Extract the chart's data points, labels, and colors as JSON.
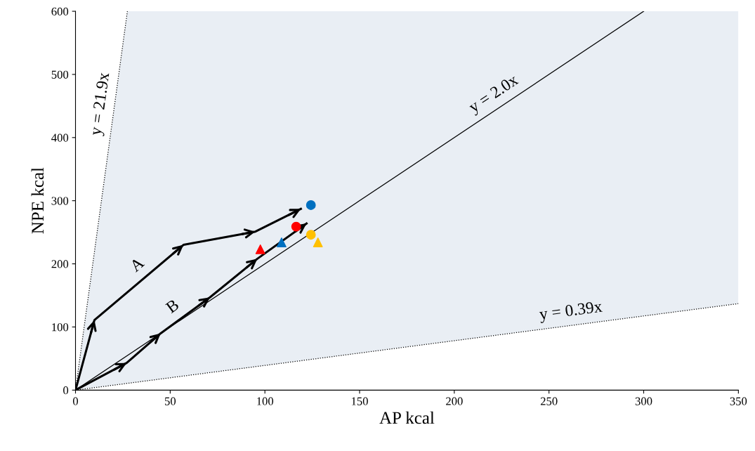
{
  "chart_data": {
    "type": "line",
    "xlabel": "AP kcal",
    "ylabel": "NPE kcal",
    "xlim": [
      0,
      350
    ],
    "ylim": [
      0,
      600
    ],
    "xticks": [
      0,
      50,
      100,
      150,
      200,
      250,
      300,
      350
    ],
    "yticks": [
      0,
      100,
      200,
      300,
      400,
      500,
      600
    ],
    "grid": false,
    "series": [
      {
        "name": "y = 21.9x",
        "color": "#000000",
        "line_style": "dotted",
        "x": [
          0,
          27.4
        ],
        "values": [
          0,
          600
        ]
      },
      {
        "name": "y = 2.0x",
        "color": "#000000",
        "line_style": "solid",
        "x": [
          0,
          300
        ],
        "values": [
          0,
          600
        ]
      },
      {
        "name": "y = 0.39x",
        "color": "#000000",
        "line_style": "dotted",
        "x": [
          0,
          350
        ],
        "values": [
          0,
          137
        ]
      },
      {
        "name": "A",
        "color": "#000000",
        "line_style": "solid",
        "x": [
          0,
          10,
          57,
          95,
          119
        ],
        "values": [
          0,
          111,
          230,
          251,
          287
        ]
      },
      {
        "name": "B",
        "color": "#000000",
        "line_style": "solid",
        "x": [
          0,
          27,
          45,
          71,
          96,
          122
        ],
        "values": [
          0,
          43,
          90,
          147,
          208,
          264
        ]
      },
      {
        "type": "scatter",
        "color": "#0070c0",
        "marker": "circle",
        "x": [
          124.3
        ],
        "values": [
          293
        ]
      },
      {
        "type": "scatter",
        "color": "#ff0000",
        "marker": "circle",
        "x": [
          116.5
        ],
        "values": [
          259
        ]
      },
      {
        "type": "scatter",
        "color": "#ffc000",
        "marker": "circle",
        "x": [
          124.3
        ],
        "values": [
          246
        ]
      },
      {
        "type": "scatter",
        "color": "#ff0000",
        "marker": "triangle",
        "x": [
          97.6
        ],
        "values": [
          223
        ]
      },
      {
        "type": "scatter",
        "color": "#0070c0",
        "marker": "triangle",
        "x": [
          108.8
        ],
        "values": [
          234
        ]
      },
      {
        "type": "scatter",
        "color": "#ffc000",
        "marker": "triangle",
        "x": [
          128
        ],
        "values": [
          234
        ]
      }
    ]
  }
}
